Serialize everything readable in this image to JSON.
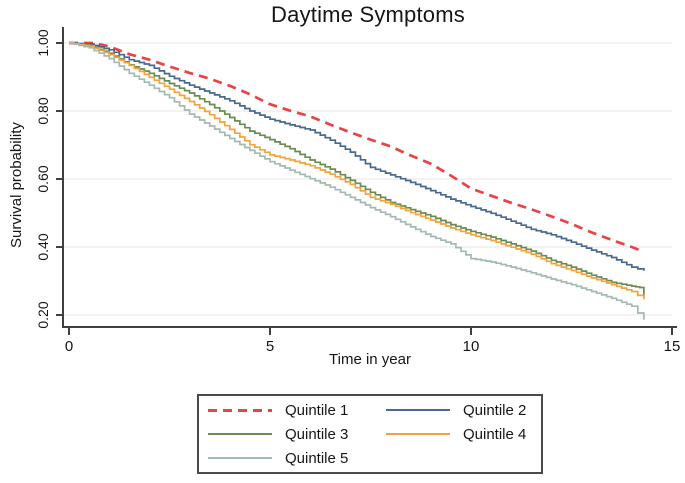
{
  "chart_data": {
    "type": "line",
    "subtype": "kaplan-meier-survival",
    "title": "Daytime Symptoms",
    "xlabel": "Time in year",
    "ylabel": "Survival probability",
    "xlim": [
      0,
      15
    ],
    "ylim": [
      0.15,
      1.02
    ],
    "x_ticks": [
      0,
      5,
      10,
      15
    ],
    "y_ticks": [
      {
        "value": 1.0,
        "label": "1.00"
      },
      {
        "value": 0.8,
        "label": "0.80"
      },
      {
        "value": 0.6,
        "label": "0.60"
      },
      {
        "value": 0.4,
        "label": "0.40"
      },
      {
        "value": 0.2,
        "label": "0.20"
      }
    ],
    "grid": "horizontal-only",
    "grid_color": "#e5e5e5",
    "axis_color": "#404040",
    "legend": {
      "position": "bottom-center",
      "border": true,
      "entries": [
        {
          "label": "Quintile 1",
          "color": "#e84345",
          "dash": "dashed"
        },
        {
          "label": "Quintile 2",
          "color": "#48688f",
          "dash": "solid"
        },
        {
          "label": "Quintile 3",
          "color": "#6b8b51",
          "dash": "solid"
        },
        {
          "label": "Quintile 4",
          "color": "#f1a33e",
          "dash": "solid"
        },
        {
          "label": "Quintile 5",
          "color": "#a4bab0",
          "dash": "solid"
        }
      ]
    },
    "series": [
      {
        "name": "Quintile 1",
        "color": "#e84345",
        "dashed": true,
        "line_width": 2.7,
        "points": [
          [
            0,
            1.0
          ],
          [
            0.6,
            1.0
          ],
          [
            1,
            0.99
          ],
          [
            1.5,
            0.967
          ],
          [
            2,
            0.951
          ],
          [
            2.5,
            0.931
          ],
          [
            3,
            0.912
          ],
          [
            3.5,
            0.895
          ],
          [
            4,
            0.874
          ],
          [
            4.5,
            0.849
          ],
          [
            5,
            0.82
          ],
          [
            5.5,
            0.801
          ],
          [
            6,
            0.784
          ],
          [
            6.5,
            0.76
          ],
          [
            7,
            0.737
          ],
          [
            7.5,
            0.716
          ],
          [
            8,
            0.696
          ],
          [
            8.5,
            0.669
          ],
          [
            9,
            0.645
          ],
          [
            9.5,
            0.61
          ],
          [
            10,
            0.572
          ],
          [
            10.5,
            0.551
          ],
          [
            11,
            0.53
          ],
          [
            11.5,
            0.511
          ],
          [
            12,
            0.49
          ],
          [
            12.5,
            0.468
          ],
          [
            13,
            0.443
          ],
          [
            13.5,
            0.421
          ],
          [
            14,
            0.4
          ],
          [
            14.3,
            0.386
          ]
        ]
      },
      {
        "name": "Quintile 2",
        "color": "#48688f",
        "dashed": false,
        "line_width": 1.7,
        "points": [
          [
            0,
            1.0
          ],
          [
            0.5,
            0.997
          ],
          [
            1,
            0.98
          ],
          [
            1.5,
            0.951
          ],
          [
            2,
            0.934
          ],
          [
            2.5,
            0.902
          ],
          [
            3,
            0.876
          ],
          [
            3.5,
            0.853
          ],
          [
            4,
            0.83
          ],
          [
            4.5,
            0.8
          ],
          [
            5,
            0.776
          ],
          [
            5.5,
            0.759
          ],
          [
            6,
            0.744
          ],
          [
            6.5,
            0.714
          ],
          [
            7,
            0.679
          ],
          [
            7.5,
            0.634
          ],
          [
            8,
            0.612
          ],
          [
            8.5,
            0.59
          ],
          [
            9,
            0.566
          ],
          [
            9.5,
            0.541
          ],
          [
            10,
            0.519
          ],
          [
            10.5,
            0.499
          ],
          [
            11,
            0.476
          ],
          [
            11.5,
            0.452
          ],
          [
            12,
            0.436
          ],
          [
            12.5,
            0.414
          ],
          [
            13,
            0.391
          ],
          [
            13.5,
            0.369
          ],
          [
            14,
            0.341
          ],
          [
            14.3,
            0.33
          ]
        ]
      },
      {
        "name": "Quintile 3",
        "color": "#6b8b51",
        "dashed": false,
        "line_width": 1.7,
        "points": [
          [
            0,
            1.0
          ],
          [
            0.5,
            0.993
          ],
          [
            1,
            0.97
          ],
          [
            1.5,
            0.936
          ],
          [
            2,
            0.911
          ],
          [
            2.5,
            0.881
          ],
          [
            3,
            0.853
          ],
          [
            3.5,
            0.819
          ],
          [
            4,
            0.781
          ],
          [
            4.5,
            0.741
          ],
          [
            5,
            0.716
          ],
          [
            5.5,
            0.689
          ],
          [
            6,
            0.656
          ],
          [
            6.5,
            0.629
          ],
          [
            7,
            0.596
          ],
          [
            7.5,
            0.561
          ],
          [
            8,
            0.531
          ],
          [
            8.5,
            0.51
          ],
          [
            9,
            0.49
          ],
          [
            9.5,
            0.466
          ],
          [
            10,
            0.446
          ],
          [
            10.5,
            0.429
          ],
          [
            11,
            0.409
          ],
          [
            11.5,
            0.388
          ],
          [
            12,
            0.361
          ],
          [
            12.5,
            0.341
          ],
          [
            13,
            0.317
          ],
          [
            13.5,
            0.296
          ],
          [
            14,
            0.285
          ],
          [
            14.2,
            0.281
          ],
          [
            14.3,
            0.255
          ]
        ]
      },
      {
        "name": "Quintile 4",
        "color": "#f1a33e",
        "dashed": false,
        "line_width": 1.7,
        "points": [
          [
            0,
            1.0
          ],
          [
            0.5,
            0.991
          ],
          [
            1,
            0.966
          ],
          [
            1.5,
            0.934
          ],
          [
            2,
            0.899
          ],
          [
            2.5,
            0.864
          ],
          [
            3,
            0.828
          ],
          [
            3.5,
            0.789
          ],
          [
            4,
            0.746
          ],
          [
            4.5,
            0.701
          ],
          [
            5,
            0.671
          ],
          [
            5.5,
            0.656
          ],
          [
            6,
            0.639
          ],
          [
            6.5,
            0.614
          ],
          [
            7,
            0.584
          ],
          [
            7.5,
            0.546
          ],
          [
            8,
            0.526
          ],
          [
            8.5,
            0.501
          ],
          [
            9,
            0.479
          ],
          [
            9.5,
            0.456
          ],
          [
            10,
            0.436
          ],
          [
            10.5,
            0.419
          ],
          [
            11,
            0.399
          ],
          [
            11.5,
            0.379
          ],
          [
            12,
            0.351
          ],
          [
            12.5,
            0.331
          ],
          [
            13,
            0.309
          ],
          [
            13.5,
            0.289
          ],
          [
            14,
            0.269
          ],
          [
            14.3,
            0.246
          ]
        ]
      },
      {
        "name": "Quintile 5",
        "color": "#a4bab0",
        "dashed": false,
        "line_width": 1.7,
        "points": [
          [
            0,
            1.0
          ],
          [
            0.5,
            0.986
          ],
          [
            1,
            0.954
          ],
          [
            1.5,
            0.911
          ],
          [
            2,
            0.876
          ],
          [
            2.5,
            0.839
          ],
          [
            3,
            0.791
          ],
          [
            3.5,
            0.756
          ],
          [
            4,
            0.719
          ],
          [
            4.5,
            0.684
          ],
          [
            5,
            0.651
          ],
          [
            5.5,
            0.626
          ],
          [
            6,
            0.601
          ],
          [
            6.5,
            0.576
          ],
          [
            7,
            0.546
          ],
          [
            7.5,
            0.516
          ],
          [
            8,
            0.489
          ],
          [
            8.5,
            0.459
          ],
          [
            9,
            0.431
          ],
          [
            9.5,
            0.409
          ],
          [
            10,
            0.366
          ],
          [
            10.5,
            0.356
          ],
          [
            11,
            0.341
          ],
          [
            11.5,
            0.324
          ],
          [
            12,
            0.306
          ],
          [
            12.5,
            0.289
          ],
          [
            13,
            0.269
          ],
          [
            13.5,
            0.249
          ],
          [
            14,
            0.226
          ],
          [
            14.3,
            0.186
          ]
        ]
      }
    ]
  }
}
